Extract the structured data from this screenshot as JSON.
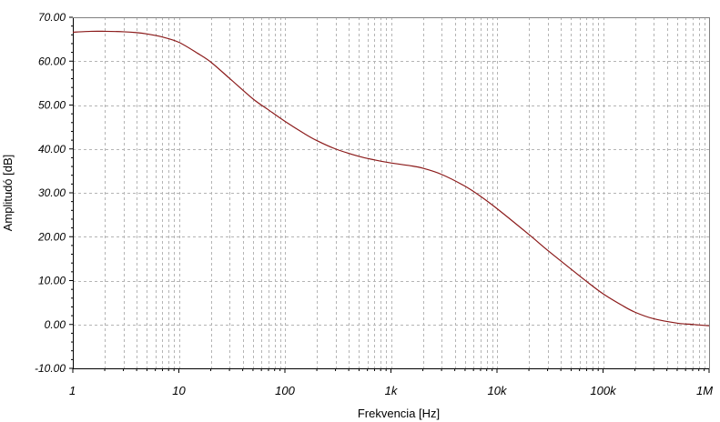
{
  "chart_data": {
    "type": "line",
    "title": "",
    "xlabel": "Frekvencia [Hz]",
    "ylabel": "Amplitudó [dB]",
    "x_scale": "log",
    "xlim": [
      1,
      1000000
    ],
    "ylim": [
      -10,
      70
    ],
    "grid": true,
    "x_ticks": [
      {
        "value": 1,
        "label": "1"
      },
      {
        "value": 10,
        "label": "10"
      },
      {
        "value": 100,
        "label": "100"
      },
      {
        "value": 1000,
        "label": "1k"
      },
      {
        "value": 10000,
        "label": "10k"
      },
      {
        "value": 100000,
        "label": "100k"
      },
      {
        "value": 1000000,
        "label": "1M"
      }
    ],
    "y_ticks": [
      {
        "value": 70,
        "label": "70.00"
      },
      {
        "value": 60,
        "label": "60.00"
      },
      {
        "value": 50,
        "label": "50.00"
      },
      {
        "value": 40,
        "label": "40.00"
      },
      {
        "value": 30,
        "label": "30.00"
      },
      {
        "value": 20,
        "label": "20.00"
      },
      {
        "value": 10,
        "label": "10.00"
      },
      {
        "value": 0,
        "label": "0.00"
      },
      {
        "value": -10,
        "label": "-10.00"
      }
    ],
    "series": [
      {
        "color": "#8b1a1a",
        "x": [
          1,
          1.5,
          2,
          3,
          4,
          5,
          7,
          10,
          15,
          20,
          30,
          50,
          70,
          100,
          150,
          200,
          300,
          500,
          700,
          1000,
          1500,
          2000,
          3000,
          5000,
          7000,
          10000,
          20000,
          30000,
          50000,
          70000,
          100000,
          150000,
          200000,
          300000,
          500000,
          700000,
          1000000
        ],
        "y": [
          66.6,
          66.8,
          66.8,
          66.7,
          66.5,
          66.2,
          65.5,
          64.3,
          61.8,
          59.8,
          56.1,
          51.4,
          48.9,
          46.3,
          43.6,
          41.9,
          40.0,
          38.3,
          37.5,
          36.8,
          36.2,
          35.6,
          34.2,
          31.5,
          29.2,
          26.4,
          20.5,
          16.9,
          12.6,
          9.8,
          7.0,
          4.4,
          2.8,
          1.3,
          0.3,
          0.0,
          -0.3
        ]
      }
    ]
  }
}
